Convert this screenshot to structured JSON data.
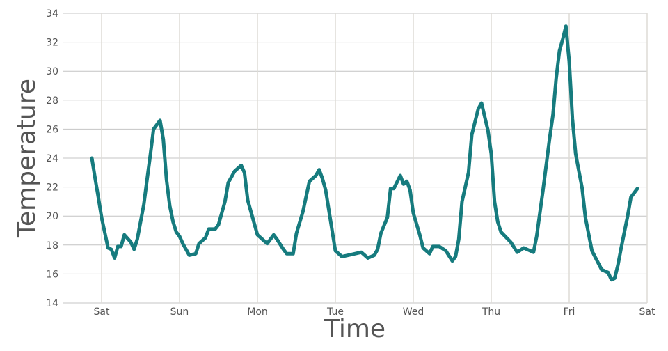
{
  "chart_data": {
    "type": "line",
    "title": "",
    "xlabel": "Time",
    "ylabel": "Temperature",
    "ylim": [
      14,
      34
    ],
    "yticks": [
      14,
      16,
      18,
      20,
      22,
      24,
      26,
      28,
      30,
      32,
      34
    ],
    "xticks": [
      "Sat",
      "Sun",
      "Mon",
      "Tue",
      "Wed",
      "Thu",
      "Fri",
      "Sat"
    ],
    "xlim": [
      "Sat 00:00",
      "Sat 00:00 (next week)"
    ],
    "grid": true,
    "line_color": "#167b7e",
    "series": [
      {
        "x": [
          "Fri 21:00",
          "Fri 22:00",
          "Fri 23:00",
          "Sat 00:00",
          "Sat 02:00",
          "Sat 03:00",
          "Sat 04:00",
          "Sat 05:00",
          "Sat 06:00",
          "Sat 07:00",
          "Sat 09:00",
          "Sat 10:00",
          "Sat 11:00",
          "Sat 13:00",
          "Sat 14:00",
          "Sat 15:00",
          "Sat 16:00",
          "Sat 18:00",
          "Sat 19:00",
          "Sat 20:00",
          "Sat 21:00",
          "Sat 22:00",
          "Sat 23:00",
          "Sun 00:00",
          "Sun 01:00",
          "Sun 03:00",
          "Sun 05:00",
          "Sun 06:00",
          "Sun 08:00",
          "Sun 09:00",
          "Sun 11:00",
          "Sun 12:00",
          "Sun 14:00",
          "Sun 15:00",
          "Sun 17:00",
          "Sun 19:00",
          "Sun 20:00",
          "Sun 21:00",
          "Sun 23:00",
          "Mon 00:00",
          "Mon 02:00",
          "Mon 03:00",
          "Mon 05:00",
          "Mon 06:00",
          "Mon 08:00",
          "Mon 09:00",
          "Mon 11:00",
          "Mon 12:00",
          "Mon 14:00",
          "Mon 16:00",
          "Mon 18:00",
          "Mon 19:00",
          "Mon 20:00",
          "Mon 21:00",
          "Mon 23:00",
          "Tue 00:00",
          "Tue 02:00",
          "Tue 04:00",
          "Tue 06:00",
          "Tue 08:00",
          "Tue 10:00",
          "Tue 12:00",
          "Tue 13:00",
          "Tue 14:00",
          "Tue 16:00",
          "Tue 17:00",
          "Tue 18:00",
          "Tue 20:00",
          "Tue 21:00",
          "Tue 22:00",
          "Tue 23:00",
          "Wed 00:00",
          "Wed 02:00",
          "Wed 03:00",
          "Wed 05:00",
          "Wed 06:00",
          "Wed 08:00",
          "Wed 10:00",
          "Wed 12:00",
          "Wed 13:00",
          "Wed 14:00",
          "Wed 15:00",
          "Wed 17:00",
          "Wed 18:00",
          "Wed 20:00",
          "Wed 21:00",
          "Wed 23:00",
          "Thu 00:00",
          "Thu 01:00",
          "Thu 02:00",
          "Thu 03:00",
          "Thu 06:00",
          "Thu 08:00",
          "Thu 10:00",
          "Thu 13:00",
          "Thu 14:00",
          "Thu 16:00",
          "Thu 18:00",
          "Thu 19:00",
          "Thu 20:00",
          "Thu 21:00",
          "Thu 22:00",
          "Thu 23:00",
          "Fri 00:00",
          "Fri 01:00",
          "Fri 02:00",
          "Fri 04:00",
          "Fri 05:00",
          "Fri 07:00",
          "Fri 10:00",
          "Fri 12:00",
          "Fri 13:00",
          "Fri 14:00",
          "Fri 15:00",
          "Fri 16:00",
          "Fri 18:00",
          "Fri 19:00",
          "Fri 21:00"
        ],
        "y": [
          24.0,
          22.6,
          21.3,
          19.9,
          17.8,
          17.7,
          17.1,
          17.9,
          17.9,
          18.7,
          18.2,
          17.7,
          18.4,
          20.8,
          22.5,
          24.2,
          26.0,
          26.6,
          25.3,
          22.5,
          20.7,
          19.6,
          18.9,
          18.6,
          18.1,
          17.3,
          17.4,
          18.1,
          18.5,
          19.1,
          19.1,
          19.4,
          21.0,
          22.3,
          23.1,
          23.5,
          23.0,
          21.1,
          19.5,
          18.7,
          18.3,
          18.1,
          18.7,
          18.4,
          17.7,
          17.4,
          17.4,
          18.8,
          20.3,
          22.4,
          22.8,
          23.2,
          22.6,
          21.8,
          19.0,
          17.6,
          17.2,
          17.3,
          17.4,
          17.5,
          17.1,
          17.3,
          17.7,
          18.8,
          19.9,
          21.9,
          21.9,
          22.8,
          22.2,
          22.4,
          21.8,
          20.2,
          18.7,
          17.8,
          17.4,
          17.9,
          17.9,
          17.6,
          16.9,
          17.2,
          18.4,
          21.0,
          23.0,
          25.6,
          27.4,
          27.8,
          25.9,
          24.3,
          21.0,
          19.6,
          18.9,
          18.2,
          17.5,
          17.8,
          17.5,
          18.6,
          21.9,
          25.4,
          27.0,
          29.5,
          31.4,
          32.2,
          33.1,
          30.7,
          26.7,
          24.3,
          21.9,
          19.9,
          17.6,
          16.3,
          16.1,
          15.6,
          15.7,
          16.6,
          17.8,
          20.0,
          21.3,
          21.9
        ]
      }
    ]
  }
}
